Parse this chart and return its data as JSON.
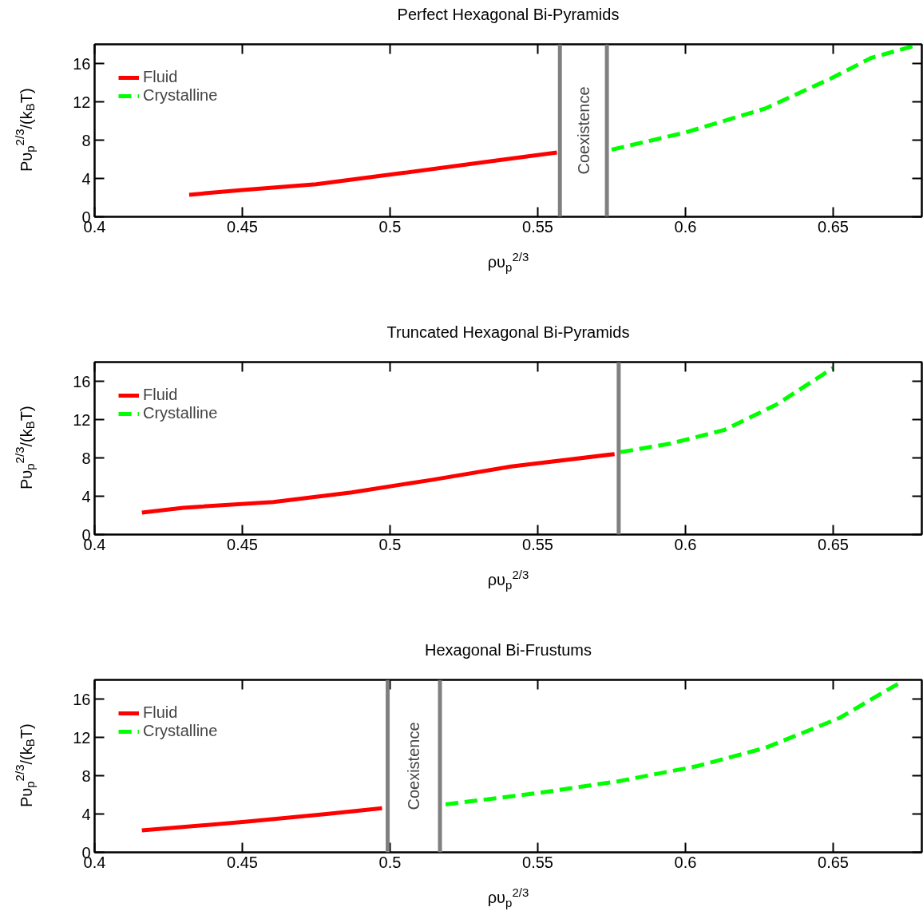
{
  "chart_data": [
    {
      "type": "line",
      "title": "Perfect Hexagonal Bi-Pyramids",
      "xlabel": "ρυ$_{p}$$^{2/3}$",
      "ylabel": "Pυ$_{p}$$^{2/3}$/(k$_{B}$T)",
      "xlim": [
        0.4,
        0.68
      ],
      "ylim": [
        0,
        18
      ],
      "xticks": [
        0.4,
        0.45,
        0.5,
        0.55,
        0.6,
        0.65
      ],
      "yticks": [
        0,
        4,
        8,
        12,
        16
      ],
      "legend": "top left",
      "series": [
        {
          "name": "Fluid",
          "color": "#ff0000",
          "line_style": "solid",
          "x": [
            0.432,
            0.45,
            0.475,
            0.505,
            0.532,
            0.5565
          ],
          "values": [
            2.3,
            2.8,
            3.4,
            4.6,
            5.7,
            6.7
          ]
        },
        {
          "name": "Crystalline",
          "color": "#00ff00",
          "line_style": "dashed",
          "x": [
            0.575,
            0.6,
            0.627,
            0.649,
            0.663,
            0.677
          ],
          "values": [
            7.0,
            8.8,
            11.3,
            14.4,
            16.6,
            17.8
          ]
        }
      ],
      "ref_lines": [
        {
          "axis": "x",
          "value": 0.5575,
          "color": "#808080"
        },
        {
          "axis": "x",
          "value": 0.5734,
          "color": "#808080"
        }
      ],
      "annotations": [
        "Coexistence"
      ]
    },
    {
      "type": "line",
      "title": "Truncated Hexagonal Bi-Pyramids",
      "xlabel": "ρυ$_{p}$$^{2/3}$",
      "ylabel": "Pυ$_{p}$$^{2/3}$/(k$_{B}$T)",
      "xlim": [
        0.4,
        0.68
      ],
      "ylim": [
        0,
        18
      ],
      "xticks": [
        0.4,
        0.45,
        0.5,
        0.55,
        0.6,
        0.65
      ],
      "yticks": [
        0,
        4,
        8,
        12,
        16
      ],
      "legend": "top left",
      "series": [
        {
          "name": "Fluid",
          "color": "#ff0000",
          "line_style": "solid",
          "x": [
            0.416,
            0.43,
            0.4605,
            0.487,
            0.514,
            0.541,
            0.576
          ],
          "values": [
            2.3,
            2.8,
            3.4,
            4.4,
            5.7,
            7.1,
            8.4
          ]
        },
        {
          "name": "Crystalline",
          "color": "#00ff00",
          "line_style": "dashed",
          "x": [
            0.578,
            0.595,
            0.613,
            0.631,
            0.65
          ],
          "values": [
            8.6,
            9.5,
            10.9,
            13.6,
            17.4
          ]
        }
      ],
      "ref_lines": [
        {
          "axis": "x",
          "value": 0.5774,
          "color": "#808080"
        }
      ]
    },
    {
      "type": "line",
      "title": "Hexagonal Bi-Frustums",
      "xlabel": "ρυ$_{p}$$^{2/3}$",
      "ylabel": "Pυ$_{p}$$^{2/3}$/(k$_{B}$T)",
      "xlim": [
        0.4,
        0.68
      ],
      "ylim": [
        0,
        18
      ],
      "xticks": [
        0.4,
        0.45,
        0.5,
        0.55,
        0.6,
        0.65
      ],
      "yticks": [
        0,
        4,
        8,
        12,
        16
      ],
      "legend": "top left",
      "series": [
        {
          "name": "Fluid",
          "color": "#ff0000",
          "line_style": "solid",
          "x": [
            0.416,
            0.4516,
            0.4785,
            0.4973
          ],
          "values": [
            2.3,
            3.2,
            4.0,
            4.6
          ]
        },
        {
          "name": "Crystalline",
          "color": "#00ff00",
          "line_style": "dashed",
          "x": [
            0.5188,
            0.5503,
            0.577,
            0.604,
            0.627,
            0.652,
            0.672
          ],
          "values": [
            5.0,
            6.2,
            7.4,
            9.0,
            10.9,
            14.0,
            17.6
          ]
        }
      ],
      "ref_lines": [
        {
          "axis": "x",
          "value": 0.4992,
          "color": "#808080"
        },
        {
          "axis": "x",
          "value": 0.5169,
          "color": "#808080"
        }
      ],
      "annotations": [
        "Coexistence"
      ]
    }
  ]
}
